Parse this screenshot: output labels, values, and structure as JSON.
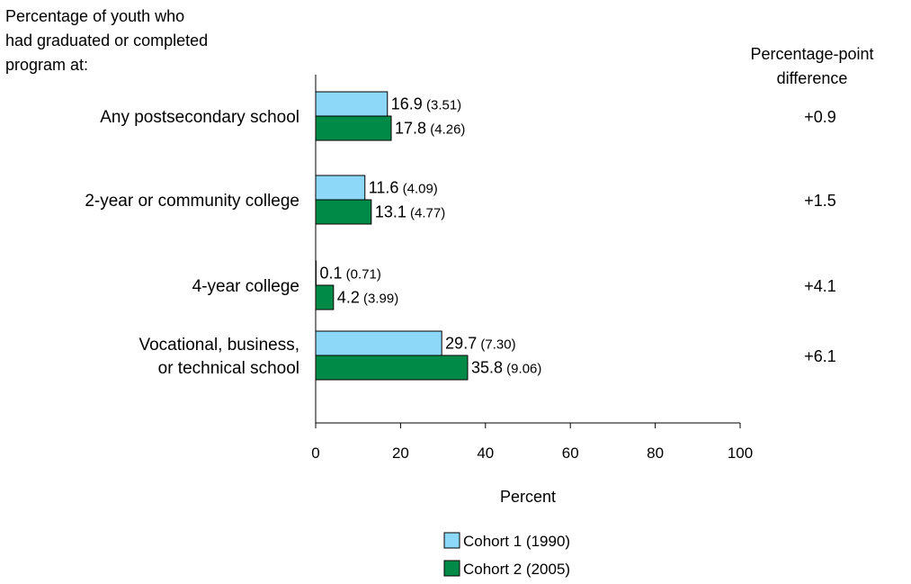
{
  "header_note": {
    "lines": [
      "Percentage of youth who",
      "had graduated or completed",
      "program at:"
    ]
  },
  "diff_header": {
    "lines": [
      "Percentage-point",
      "difference"
    ]
  },
  "colors": {
    "cohort1": "#8dd8f8",
    "cohort2": "#008a47",
    "axis": "#000000"
  },
  "chart_data": {
    "type": "bar",
    "orientation": "horizontal",
    "categories": [
      [
        "Any postsecondary school"
      ],
      [
        "2-year or community college"
      ],
      [
        "4-year college"
      ],
      [
        "Vocational, business,",
        "or technical school"
      ]
    ],
    "series": [
      {
        "name": "Cohort 1 (1990)",
        "values": [
          16.9,
          11.6,
          0.1,
          29.7
        ],
        "labels": [
          "16.9",
          "11.6",
          "0.1",
          "29.7"
        ],
        "se_labels": [
          "(3.51)",
          "(4.09)",
          "(0.71)",
          "(7.30)"
        ]
      },
      {
        "name": "Cohort 2 (2005)",
        "values": [
          17.8,
          13.1,
          4.2,
          35.8
        ],
        "labels": [
          "17.8",
          "13.1",
          "4.2",
          "35.8"
        ],
        "se_labels": [
          "(4.26)",
          "(4.77)",
          "(3.99)",
          "(9.06)"
        ]
      }
    ],
    "differences": [
      "+0.9",
      "+1.5",
      "+4.1",
      "+6.1"
    ],
    "x_ticks": [
      0,
      20,
      40,
      60,
      80,
      100
    ],
    "xlim": [
      0,
      100
    ],
    "xlabel": "Percent",
    "title": "",
    "grid": false,
    "legend_position": "bottom-center"
  }
}
